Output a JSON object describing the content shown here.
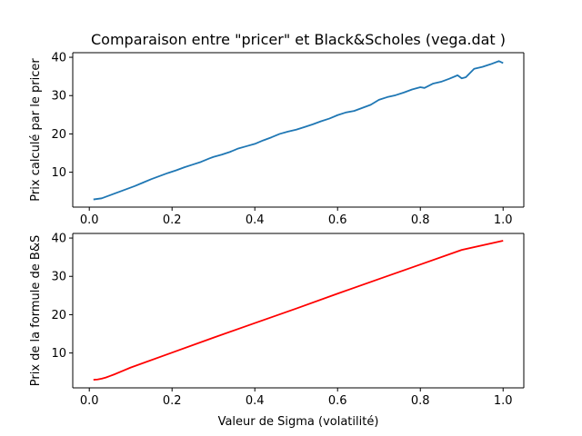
{
  "figure": {
    "title": "Comparaison entre \"pricer\" et Black&Scholes (vega.dat )"
  },
  "chart_data": [
    {
      "type": "line",
      "title": "Comparaison entre \"pricer\" et Black&Scholes (vega.dat )",
      "xlabel": "",
      "ylabel": "Prix calculé par le pricer",
      "xlim": [
        -0.04,
        1.05
      ],
      "ylim": [
        0.9,
        41.2
      ],
      "xticks": [
        0.0,
        0.2,
        0.4,
        0.6,
        0.8,
        1.0
      ],
      "xtick_labels": [
        "0.0",
        "0.2",
        "0.4",
        "0.6",
        "0.8",
        "1.0"
      ],
      "yticks": [
        10,
        20,
        30,
        40
      ],
      "ytick_labels": [
        "10",
        "20",
        "30",
        "40"
      ],
      "grid": false,
      "series": [
        {
          "name": "",
          "color": "#1f77b4",
          "x": [
            0.01,
            0.03,
            0.05,
            0.07,
            0.09,
            0.11,
            0.13,
            0.15,
            0.17,
            0.19,
            0.21,
            0.23,
            0.25,
            0.27,
            0.29,
            0.3,
            0.32,
            0.34,
            0.36,
            0.38,
            0.4,
            0.42,
            0.44,
            0.46,
            0.48,
            0.5,
            0.52,
            0.54,
            0.56,
            0.58,
            0.6,
            0.62,
            0.64,
            0.66,
            0.68,
            0.7,
            0.72,
            0.74,
            0.76,
            0.78,
            0.8,
            0.81,
            0.83,
            0.85,
            0.87,
            0.89,
            0.9,
            0.91,
            0.93,
            0.95,
            0.97,
            0.99,
            1.0
          ],
          "y": [
            2.9,
            3.2,
            4.0,
            4.8,
            5.6,
            6.4,
            7.3,
            8.2,
            9.0,
            9.8,
            10.5,
            11.3,
            12.0,
            12.7,
            13.6,
            14.0,
            14.6,
            15.3,
            16.2,
            16.8,
            17.4,
            18.3,
            19.1,
            20.0,
            20.6,
            21.1,
            21.8,
            22.5,
            23.3,
            24.0,
            24.9,
            25.6,
            26.0,
            26.8,
            27.6,
            28.9,
            29.6,
            30.1,
            30.8,
            31.6,
            32.2,
            32.0,
            33.1,
            33.6,
            34.4,
            35.3,
            34.5,
            34.8,
            37.0,
            37.5,
            38.2,
            39.0,
            38.5
          ]
        }
      ]
    },
    {
      "type": "line",
      "title": "",
      "xlabel": "Valeur de Sigma (volatilité)",
      "ylabel": "Prix de la formule de B&S",
      "xlim": [
        -0.04,
        1.05
      ],
      "ylim": [
        0.9,
        41.2
      ],
      "xticks": [
        0.0,
        0.2,
        0.4,
        0.6,
        0.8,
        1.0
      ],
      "xtick_labels": [
        "0.0",
        "0.2",
        "0.4",
        "0.6",
        "0.8",
        "1.0"
      ],
      "yticks": [
        10,
        20,
        30,
        40
      ],
      "ytick_labels": [
        "10",
        "20",
        "30",
        "40"
      ],
      "grid": false,
      "series": [
        {
          "name": "",
          "color": "#ff0000",
          "x": [
            0.01,
            0.02,
            0.03,
            0.04,
            0.05,
            0.06,
            0.08,
            0.1,
            0.2,
            0.3,
            0.4,
            0.5,
            0.6,
            0.7,
            0.8,
            0.9,
            1.0
          ],
          "y": [
            3.0,
            3.1,
            3.3,
            3.6,
            4.0,
            4.4,
            5.3,
            6.2,
            10.1,
            14.0,
            17.8,
            21.6,
            25.5,
            29.3,
            33.1,
            36.9,
            39.3
          ]
        }
      ]
    }
  ]
}
